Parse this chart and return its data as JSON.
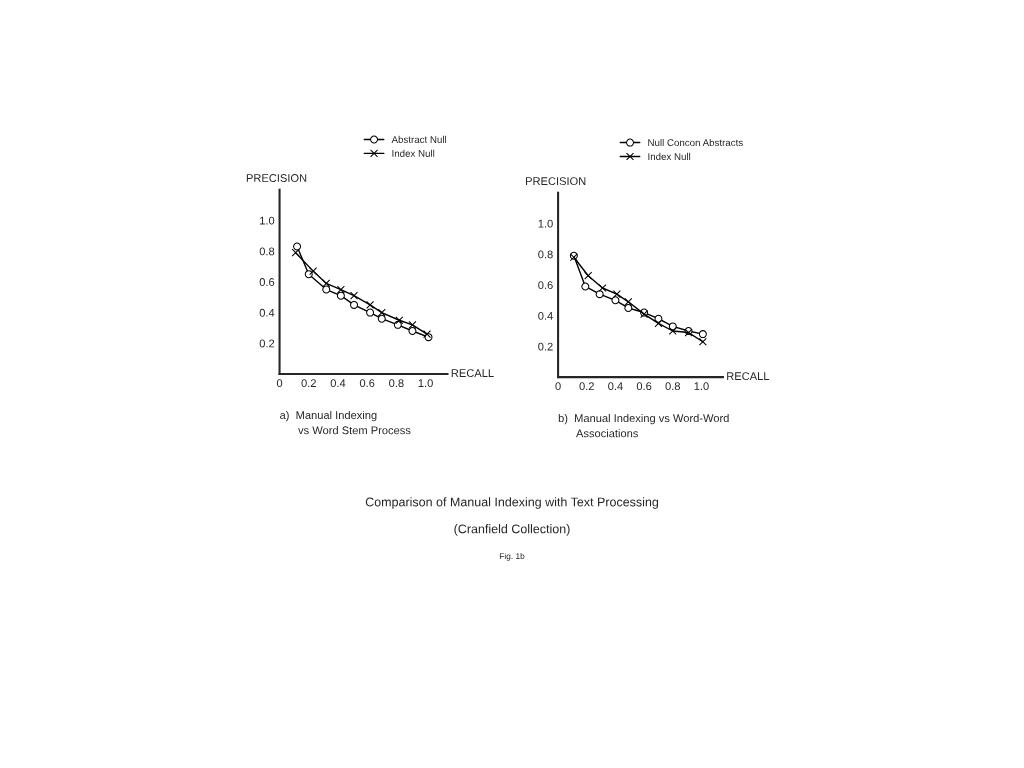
{
  "chart_data": [
    {
      "type": "line",
      "title": "a)  Manual Indexing\n      vs Word Stem Process",
      "xlabel": "RECALL",
      "ylabel": "PRECISION",
      "xlim": [
        0,
        1.15
      ],
      "ylim": [
        0,
        1.2
      ],
      "xticks": [
        0,
        0.2,
        0.4,
        0.6,
        0.8,
        {
          "value": 1,
          "label": "1.0"
        }
      ],
      "yticks": [
        0.2,
        0.4,
        0.6,
        0.8,
        {
          "value": 1,
          "label": "1.0"
        }
      ],
      "legend": "top",
      "grid": false,
      "series": [
        {
          "name": "Abstract Null",
          "color": "#000000",
          "marker": "circle",
          "x": [
            0.12,
            0.2,
            0.32,
            0.42,
            0.51,
            0.62,
            0.7,
            0.81,
            0.91,
            1.02
          ],
          "values": [
            0.83,
            0.65,
            0.55,
            0.51,
            0.45,
            0.4,
            0.36,
            0.32,
            0.28,
            0.24
          ]
        },
        {
          "name": "Index Null",
          "color": "#000000",
          "marker": "cross",
          "x": [
            0.11,
            0.23,
            0.32,
            0.42,
            0.51,
            0.62,
            0.7,
            0.82,
            0.91,
            1.01
          ],
          "values": [
            0.79,
            0.67,
            0.59,
            0.55,
            0.51,
            0.45,
            0.4,
            0.35,
            0.32,
            0.26
          ]
        }
      ],
      "annotations": [
        "Comparison of Manual Indexing with Text Processing",
        "(Cranfield Collection)",
        "Fig. 1b"
      ]
    },
    {
      "type": "line",
      "title": "b)  Manual Indexing vs Word-Word\n      Associations",
      "xlabel": "RECALL",
      "ylabel": "PRECISION",
      "xlim": [
        0,
        1.15
      ],
      "ylim": [
        0,
        1.2
      ],
      "xticks": [
        0,
        0.2,
        0.4,
        0.6,
        0.8,
        {
          "value": 1,
          "label": "1.0"
        }
      ],
      "yticks": [
        0.2,
        0.4,
        0.6,
        0.8,
        {
          "value": 1,
          "label": "1.0"
        }
      ],
      "legend": "top",
      "grid": false,
      "series": [
        {
          "name": "Null Concon Abstracts",
          "color": "#000000",
          "marker": "circle",
          "x": [
            0.11,
            0.19,
            0.29,
            0.4,
            0.49,
            0.6,
            0.7,
            0.8,
            0.91,
            1.01
          ],
          "values": [
            0.79,
            0.59,
            0.54,
            0.5,
            0.45,
            0.42,
            0.38,
            0.33,
            0.3,
            0.28
          ]
        },
        {
          "name": "Index Null",
          "color": "#000000",
          "marker": "cross",
          "x": [
            0.11,
            0.21,
            0.31,
            0.41,
            0.49,
            0.6,
            0.7,
            0.8,
            0.91,
            1.01
          ],
          "values": [
            0.78,
            0.66,
            0.58,
            0.54,
            0.49,
            0.41,
            0.35,
            0.3,
            0.29,
            0.23
          ]
        }
      ]
    }
  ]
}
